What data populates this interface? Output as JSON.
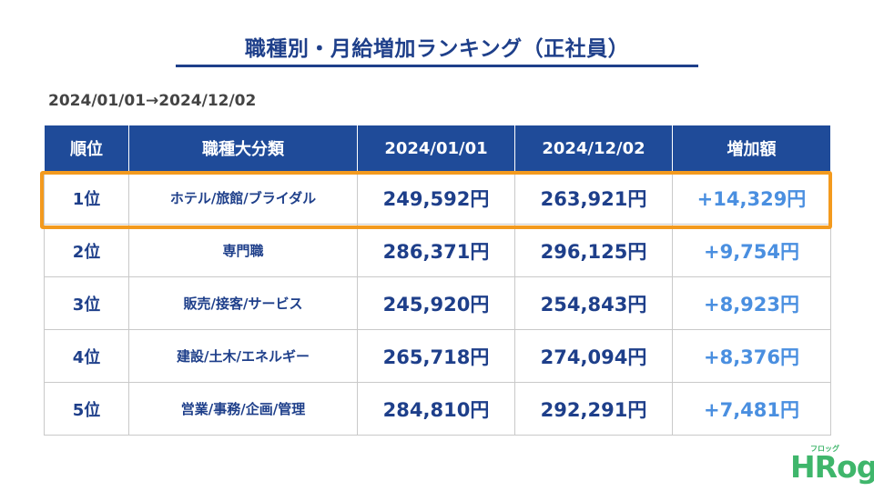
{
  "title": "職種別・月給増加ランキング（正社員）",
  "period": "2024/01/01→2024/12/02",
  "table": {
    "headers": [
      "順位",
      "職種大分類",
      "2024/01/01",
      "2024/12/02",
      "増加額"
    ],
    "rows": [
      {
        "rank": "1位",
        "job": "ホテル/旅館/ブライダル",
        "salary_start": "249,592円",
        "salary_end": "263,921円",
        "increase": "+14,329円"
      },
      {
        "rank": "2位",
        "job": "専門職",
        "salary_start": "286,371円",
        "salary_end": "296,125円",
        "increase": "+9,754円"
      },
      {
        "rank": "3位",
        "job": "販売/接客/サービス",
        "salary_start": "245,920円",
        "salary_end": "254,843円",
        "increase": "+8,923円"
      },
      {
        "rank": "4位",
        "job": "建設/土木/エネルギー",
        "salary_start": "265,718円",
        "salary_end": "274,094円",
        "increase": "+8,376円"
      },
      {
        "rank": "5位",
        "job": "営業/事務/企画/管理",
        "salary_start": "284,810円",
        "salary_end": "292,291円",
        "increase": "+7,481円"
      }
    ]
  },
  "logo": {
    "text": "HRog",
    "ruby": "フロッグ"
  },
  "colors": {
    "title": "#1e3f8a",
    "header_bg": "#1f4b99",
    "increase": "#4a8fe0",
    "highlight": "#f39a1e",
    "logo": "#3fb66b"
  }
}
